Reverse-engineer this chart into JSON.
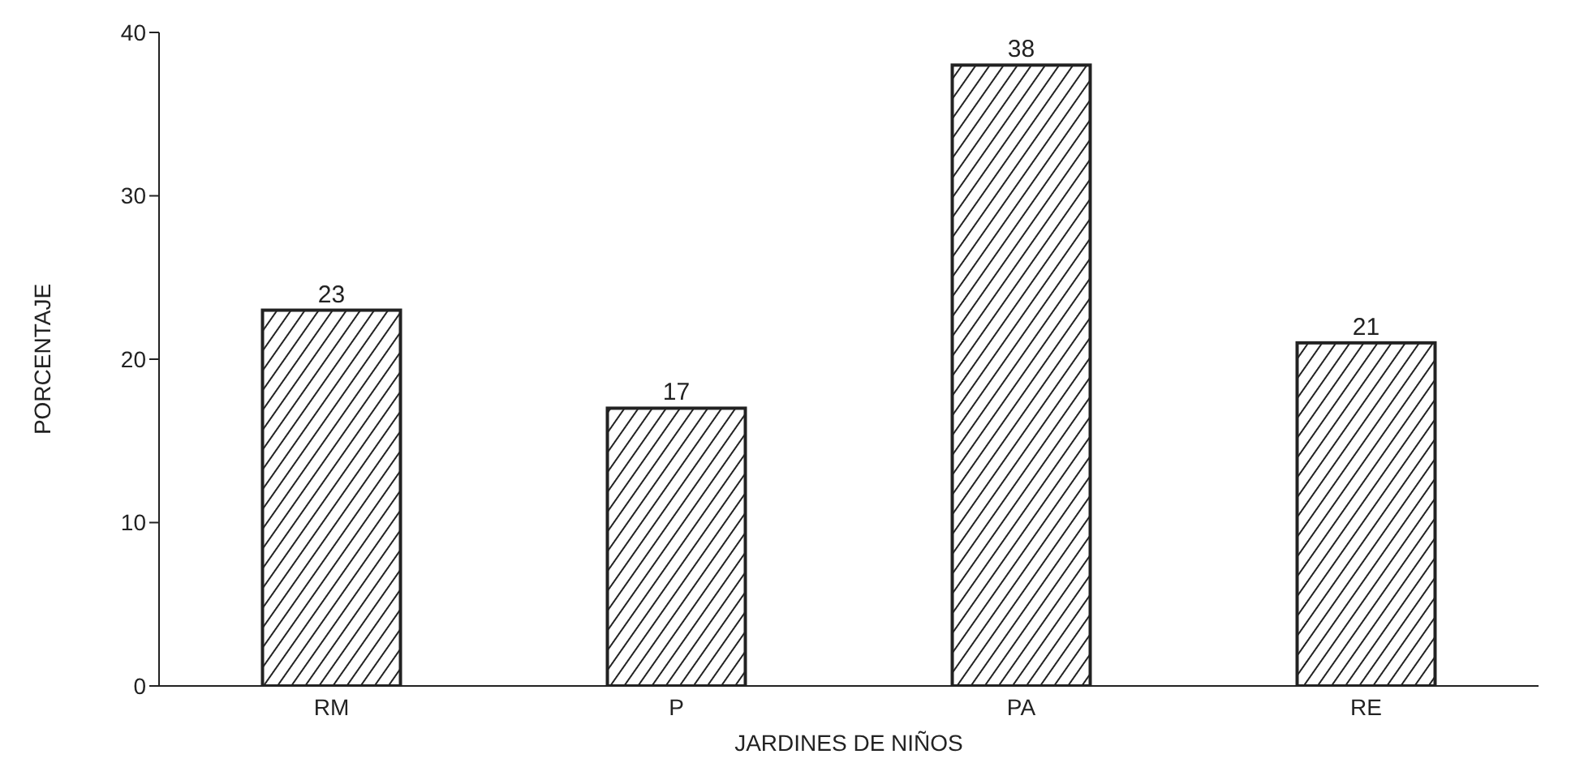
{
  "chart_data": {
    "type": "bar",
    "xlabel": "JARDINES DE NIÑOS",
    "ylabel": "PORCENTAJE",
    "categories": [
      "RM",
      "P",
      "PA",
      "RE"
    ],
    "values": [
      23,
      17,
      38,
      21
    ],
    "color": "#222222",
    "ylim": [
      0,
      40
    ],
    "yticks": [
      0,
      10,
      20,
      30,
      40
    ],
    "data_labels": true
  }
}
